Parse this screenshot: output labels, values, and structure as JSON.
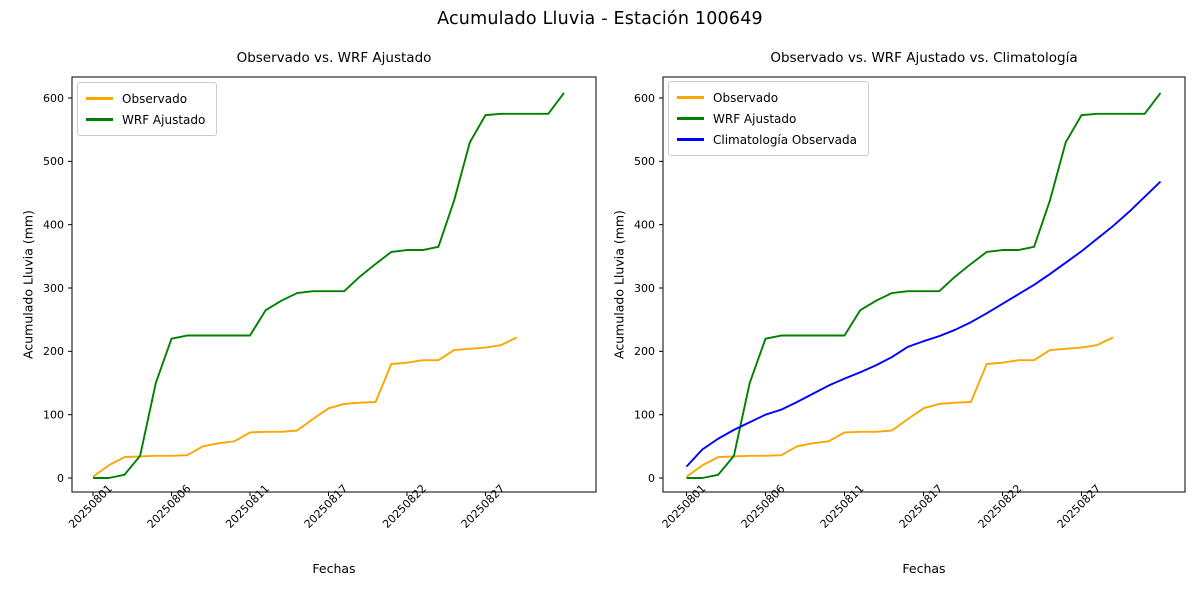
{
  "figure": {
    "suptitle": "Acumulado Lluvia - Estación 100649",
    "background": "#ffffff"
  },
  "colors": {
    "observado": "#FFA500",
    "wrf_ajustado": "#008000",
    "climatologia": "#0000FF",
    "axis": "#000000",
    "legend_border": "#cccccc"
  },
  "chart_data": [
    {
      "type": "line",
      "title": "Observado vs. WRF Ajustado",
      "xlabel": "Fechas",
      "ylabel": "Acumulado Lluvia (mm)",
      "y_ticks": [
        0,
        100,
        200,
        300,
        400,
        500,
        600
      ],
      "x_tick_positions": [
        0,
        5,
        10,
        15,
        20,
        25
      ],
      "x_tick_labels": [
        "20250801",
        "20250806",
        "20250811",
        "20250817",
        "20250822",
        "20250827"
      ],
      "x_range": [
        0,
        30
      ],
      "ylim": [
        -30,
        640
      ],
      "grid": false,
      "legend_position": "upper left",
      "series": [
        {
          "name": "Observado",
          "key": "observado",
          "color": "#FFA500",
          "values": [
            2,
            20,
            33,
            34,
            35,
            35,
            36,
            50,
            55,
            58,
            72,
            73,
            73,
            75,
            93,
            110,
            117,
            119,
            120,
            180,
            182,
            186,
            186,
            202,
            204,
            206,
            210,
            222
          ]
        },
        {
          "name": "WRF Ajustado",
          "key": "wrf-ajustado",
          "color": "#008000",
          "values": [
            0,
            0,
            5,
            35,
            150,
            220,
            225,
            225,
            225,
            225,
            225,
            265,
            280,
            292,
            295,
            295,
            295,
            318,
            338,
            357,
            360,
            360,
            365,
            438,
            530,
            573,
            575,
            575,
            575,
            575,
            608
          ]
        }
      ]
    },
    {
      "type": "line",
      "title": "Observado vs. WRF Ajustado vs. Climatología",
      "xlabel": "Fechas",
      "ylabel": "Acumulado Lluvia (mm)",
      "y_ticks": [
        0,
        100,
        200,
        300,
        400,
        500,
        600
      ],
      "x_tick_positions": [
        0,
        5,
        10,
        15,
        20,
        25
      ],
      "x_tick_labels": [
        "20250801",
        "20250806",
        "20250811",
        "20250817",
        "20250822",
        "20250827"
      ],
      "x_range": [
        0,
        30
      ],
      "ylim": [
        -30,
        640
      ],
      "grid": false,
      "legend_position": "upper left",
      "series": [
        {
          "name": "Observado",
          "key": "observado",
          "color": "#FFA500",
          "values": [
            2,
            20,
            33,
            34,
            35,
            35,
            36,
            50,
            55,
            58,
            72,
            73,
            73,
            75,
            93,
            110,
            117,
            119,
            120,
            180,
            182,
            186,
            186,
            202,
            204,
            206,
            210,
            222
          ]
        },
        {
          "name": "WRF Ajustado",
          "key": "wrf-ajustado",
          "color": "#008000",
          "values": [
            0,
            0,
            5,
            35,
            150,
            220,
            225,
            225,
            225,
            225,
            225,
            265,
            280,
            292,
            295,
            295,
            295,
            318,
            338,
            357,
            360,
            360,
            365,
            438,
            530,
            573,
            575,
            575,
            575,
            575,
            608
          ]
        },
        {
          "name": "Climatología Observada",
          "key": "climatologia",
          "color": "#0000FF",
          "values": [
            18,
            45,
            62,
            76,
            88,
            100,
            108,
            120,
            133,
            146,
            157,
            167,
            178,
            191,
            207,
            216,
            224,
            234,
            246,
            260,
            275,
            290,
            305,
            322,
            340,
            358,
            378,
            398,
            420,
            444,
            468
          ]
        }
      ]
    }
  ]
}
